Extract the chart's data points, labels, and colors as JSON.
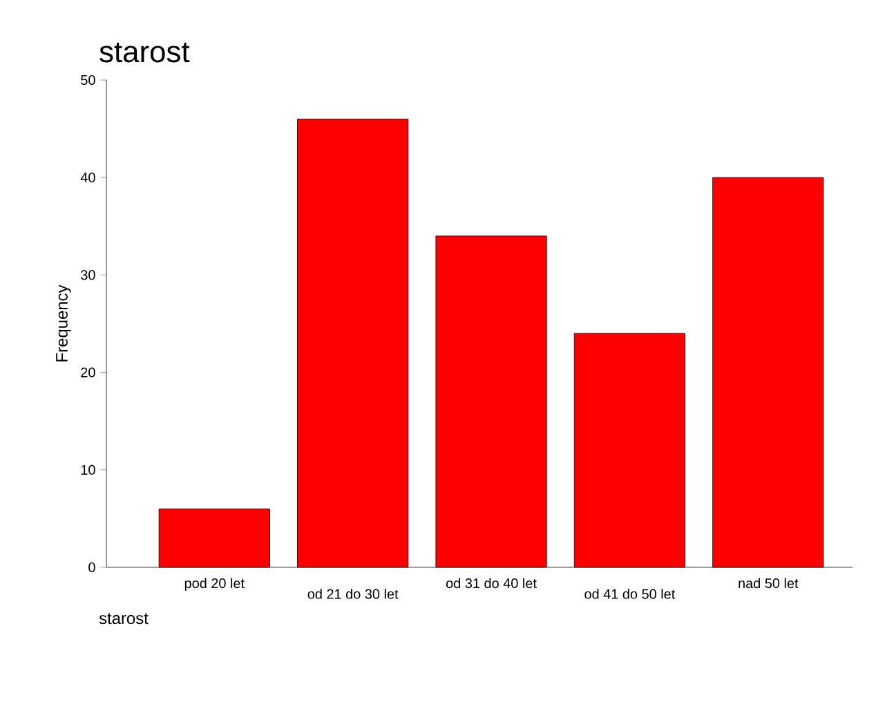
{
  "chart_data": {
    "type": "bar",
    "title": "starost",
    "xlabel": "starost",
    "ylabel": "Frequency",
    "categories": [
      "pod 20 let",
      "od 21 do 30 let",
      "od 31 do 40 let",
      "od 41 do 50 let",
      "nad 50 let"
    ],
    "values": [
      6,
      46,
      34,
      24,
      40
    ],
    "color": "#ff0000",
    "ylim": [
      0,
      50
    ],
    "yticks": [
      0,
      10,
      20,
      30,
      40,
      50
    ]
  }
}
